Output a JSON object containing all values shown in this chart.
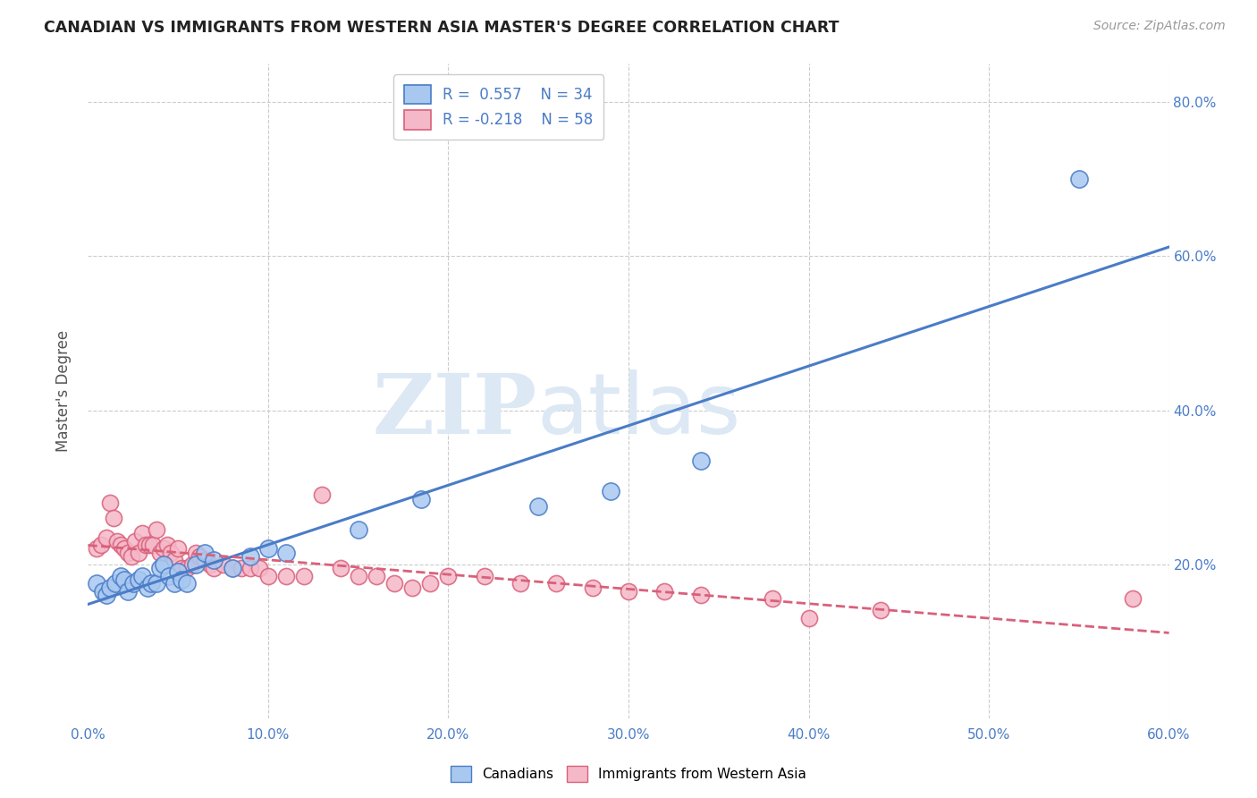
{
  "title": "CANADIAN VS IMMIGRANTS FROM WESTERN ASIA MASTER'S DEGREE CORRELATION CHART",
  "source": "Source: ZipAtlas.com",
  "ylabel": "Master's Degree",
  "xlim": [
    0.0,
    0.6
  ],
  "ylim": [
    0.0,
    0.85
  ],
  "xtick_labels": [
    "0.0%",
    "10.0%",
    "20.0%",
    "30.0%",
    "40.0%",
    "50.0%",
    "60.0%"
  ],
  "xtick_vals": [
    0.0,
    0.1,
    0.2,
    0.3,
    0.4,
    0.5,
    0.6
  ],
  "ytick_labels": [
    "20.0%",
    "40.0%",
    "60.0%",
    "80.0%"
  ],
  "ytick_vals": [
    0.2,
    0.4,
    0.6,
    0.8
  ],
  "canadian_color": "#a8c8f0",
  "canadian_edge_color": "#4a7cc7",
  "immigrant_color": "#f5b8c8",
  "immigrant_edge_color": "#d9607a",
  "trendline_canadian_color": "#4a7cc7",
  "trendline_immigrant_color": "#d9607a",
  "R_canadian": 0.557,
  "N_canadian": 34,
  "R_immigrant": -0.218,
  "N_immigrant": 58,
  "watermark_zip": "ZIP",
  "watermark_atlas": "atlas",
  "canadian_x": [
    0.005,
    0.008,
    0.01,
    0.012,
    0.015,
    0.018,
    0.02,
    0.022,
    0.025,
    0.028,
    0.03,
    0.033,
    0.035,
    0.038,
    0.04,
    0.042,
    0.045,
    0.048,
    0.05,
    0.052,
    0.055,
    0.06,
    0.065,
    0.07,
    0.08,
    0.09,
    0.1,
    0.11,
    0.15,
    0.185,
    0.25,
    0.29,
    0.34,
    0.55
  ],
  "canadian_y": [
    0.175,
    0.165,
    0.16,
    0.17,
    0.175,
    0.185,
    0.18,
    0.165,
    0.175,
    0.18,
    0.185,
    0.17,
    0.175,
    0.175,
    0.195,
    0.2,
    0.185,
    0.175,
    0.19,
    0.18,
    0.175,
    0.2,
    0.215,
    0.205,
    0.195,
    0.21,
    0.22,
    0.215,
    0.245,
    0.285,
    0.275,
    0.295,
    0.335,
    0.7
  ],
  "immigrant_x": [
    0.005,
    0.007,
    0.01,
    0.012,
    0.014,
    0.016,
    0.018,
    0.02,
    0.022,
    0.024,
    0.026,
    0.028,
    0.03,
    0.032,
    0.034,
    0.036,
    0.038,
    0.04,
    0.042,
    0.044,
    0.046,
    0.048,
    0.05,
    0.052,
    0.055,
    0.058,
    0.06,
    0.062,
    0.065,
    0.068,
    0.07,
    0.075,
    0.08,
    0.085,
    0.09,
    0.095,
    0.1,
    0.11,
    0.12,
    0.13,
    0.14,
    0.15,
    0.16,
    0.17,
    0.18,
    0.19,
    0.2,
    0.22,
    0.24,
    0.26,
    0.28,
    0.3,
    0.32,
    0.34,
    0.38,
    0.4,
    0.44,
    0.58
  ],
  "immigrant_y": [
    0.22,
    0.225,
    0.235,
    0.28,
    0.26,
    0.23,
    0.225,
    0.22,
    0.215,
    0.21,
    0.23,
    0.215,
    0.24,
    0.225,
    0.225,
    0.225,
    0.245,
    0.215,
    0.22,
    0.225,
    0.215,
    0.205,
    0.22,
    0.195,
    0.195,
    0.2,
    0.215,
    0.21,
    0.205,
    0.2,
    0.195,
    0.2,
    0.195,
    0.195,
    0.195,
    0.195,
    0.185,
    0.185,
    0.185,
    0.29,
    0.195,
    0.185,
    0.185,
    0.175,
    0.17,
    0.175,
    0.185,
    0.185,
    0.175,
    0.175,
    0.17,
    0.165,
    0.165,
    0.16,
    0.155,
    0.13,
    0.14,
    0.155
  ]
}
